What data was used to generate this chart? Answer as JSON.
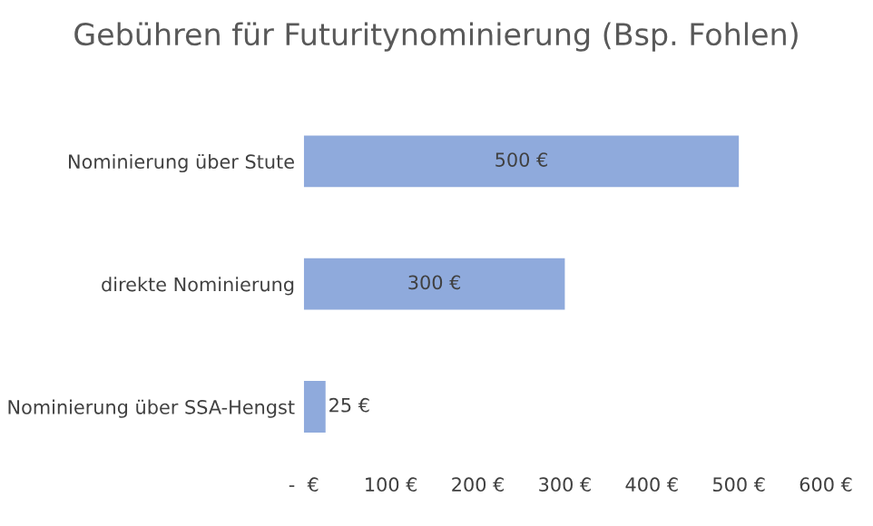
{
  "chart_data": {
    "type": "bar",
    "orientation": "horizontal",
    "title": "Gebühren für Futuritynominierung (Bsp. Fohlen)",
    "categories": [
      "Nominierung über Stute",
      "direkte Nominierung",
      "Nominierung über SSA-Hengst"
    ],
    "values": [
      500,
      300,
      25
    ],
    "color": "#8faadc",
    "value_labels": [
      "500 €",
      "300 €",
      "25 €"
    ],
    "xlim": [
      0,
      600
    ],
    "xticks": [
      {
        "value": 0,
        "label": "-  €"
      },
      {
        "value": 100,
        "label": "100 €"
      },
      {
        "value": 200,
        "label": "200 €"
      },
      {
        "value": 300,
        "label": "300 €"
      },
      {
        "value": 400,
        "label": "400 €"
      },
      {
        "value": 500,
        "label": "500 €"
      },
      {
        "value": 600,
        "label": "600 €"
      }
    ],
    "grid": false,
    "legend": false
  }
}
